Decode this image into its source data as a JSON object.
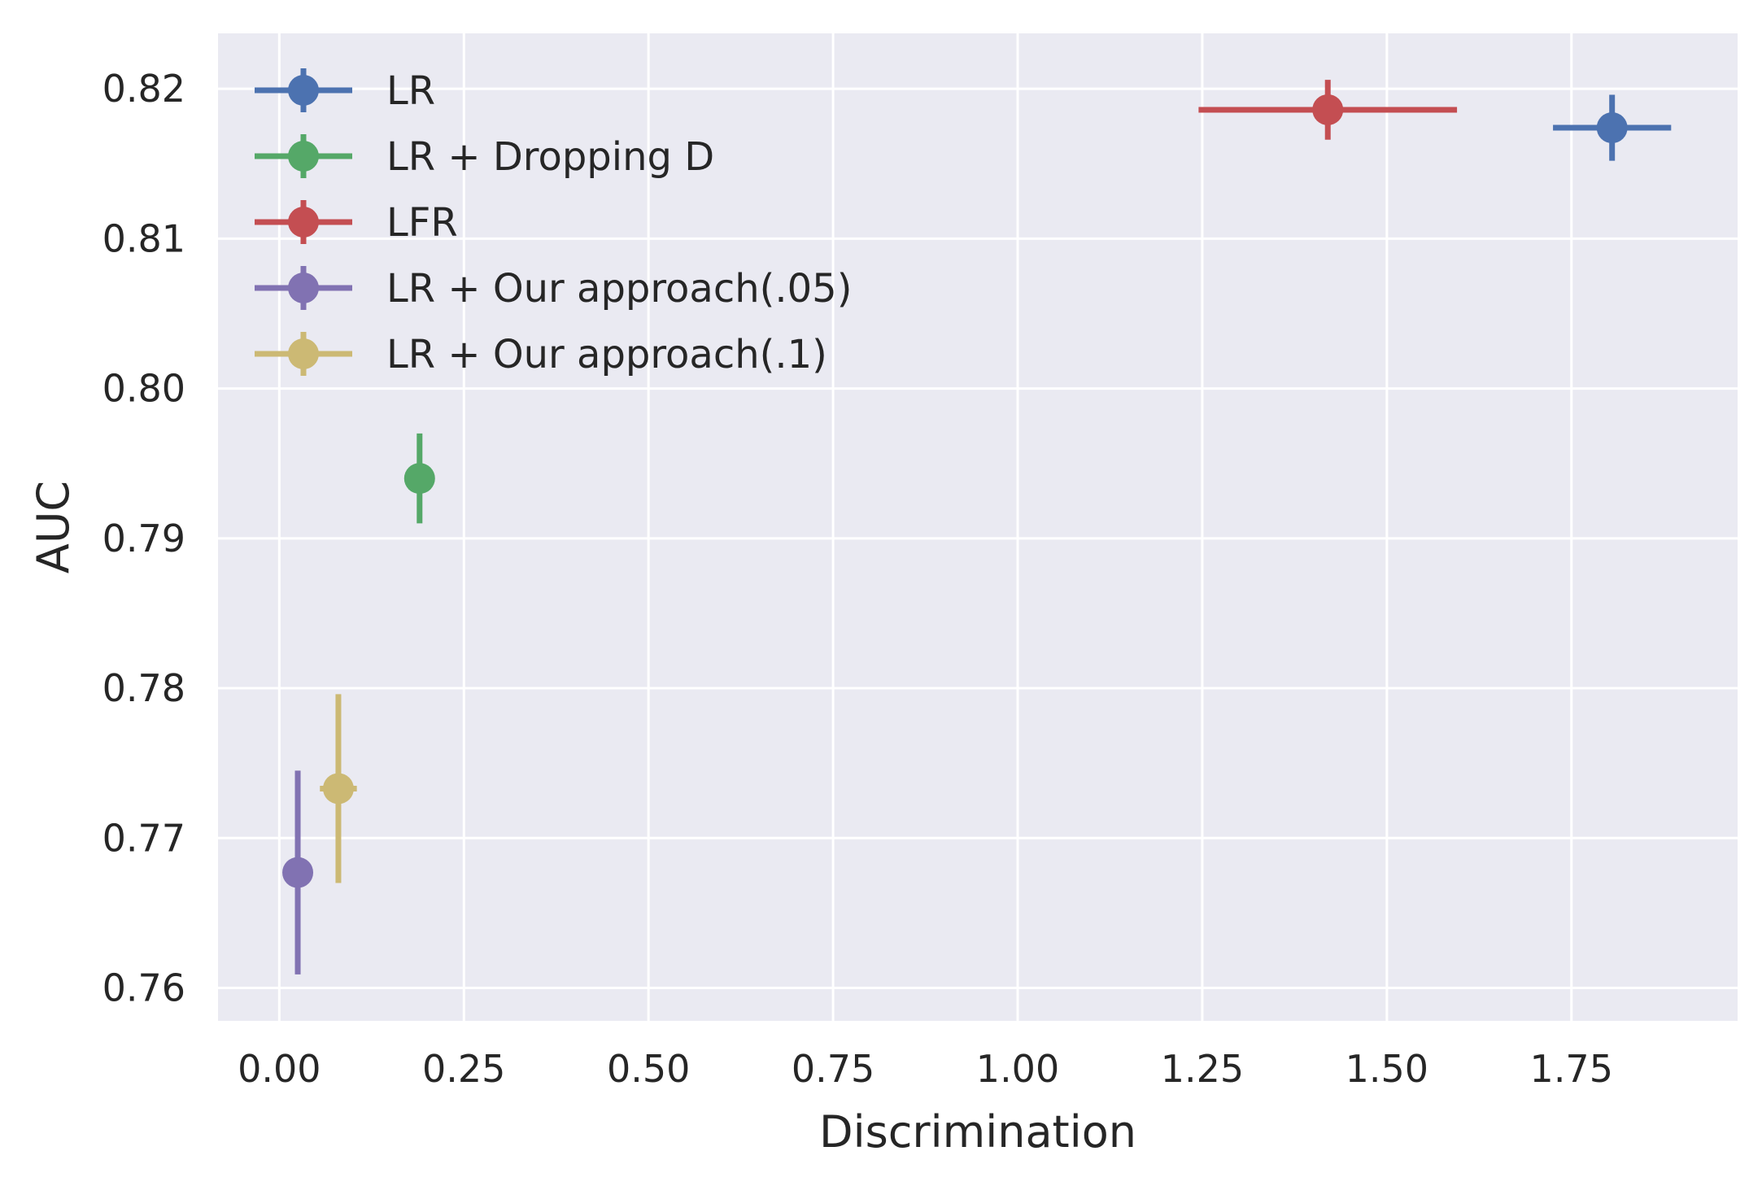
{
  "chart_data": {
    "type": "scatter",
    "title": "",
    "xlabel": "Discrimination",
    "ylabel": "AUC",
    "xlim": [
      -0.083,
      1.975
    ],
    "ylim": [
      0.7578,
      0.8237
    ],
    "xticks": [
      0.0,
      0.25,
      0.5,
      0.75,
      1.0,
      1.25,
      1.5,
      1.75
    ],
    "xtick_labels": [
      "0.00",
      "0.25",
      "0.50",
      "0.75",
      "1.00",
      "1.25",
      "1.50",
      "1.75"
    ],
    "yticks": [
      0.76,
      0.77,
      0.78,
      0.79,
      0.8,
      0.81,
      0.82
    ],
    "ytick_labels": [
      "0.76",
      "0.77",
      "0.78",
      "0.79",
      "0.80",
      "0.81",
      "0.82"
    ],
    "grid": true,
    "legend_position": "top-left",
    "background_color": "#EAEAF2",
    "series": [
      {
        "name": "LR",
        "color": "#4C72B0",
        "x": 1.805,
        "y": 0.8174,
        "xerr": 0.08,
        "yerr": 0.0022
      },
      {
        "name": "LR + Dropping D",
        "color": "#55A868",
        "x": 0.19,
        "y": 0.794,
        "xerr": 0.02,
        "yerr": 0.003
      },
      {
        "name": "LFR",
        "color": "#C44E52",
        "x": 1.42,
        "y": 0.8186,
        "xerr": 0.175,
        "yerr": 0.002
      },
      {
        "name": "LR + Our approach(.05)",
        "color": "#8172B2",
        "x": 0.025,
        "y": 0.7677,
        "xerr": 0.006,
        "yerr": 0.0068
      },
      {
        "name": "LR + Our approach(.1)",
        "color": "#CCB974",
        "x": 0.08,
        "y": 0.7733,
        "xerr": 0.025,
        "yerr": 0.0063
      }
    ]
  }
}
